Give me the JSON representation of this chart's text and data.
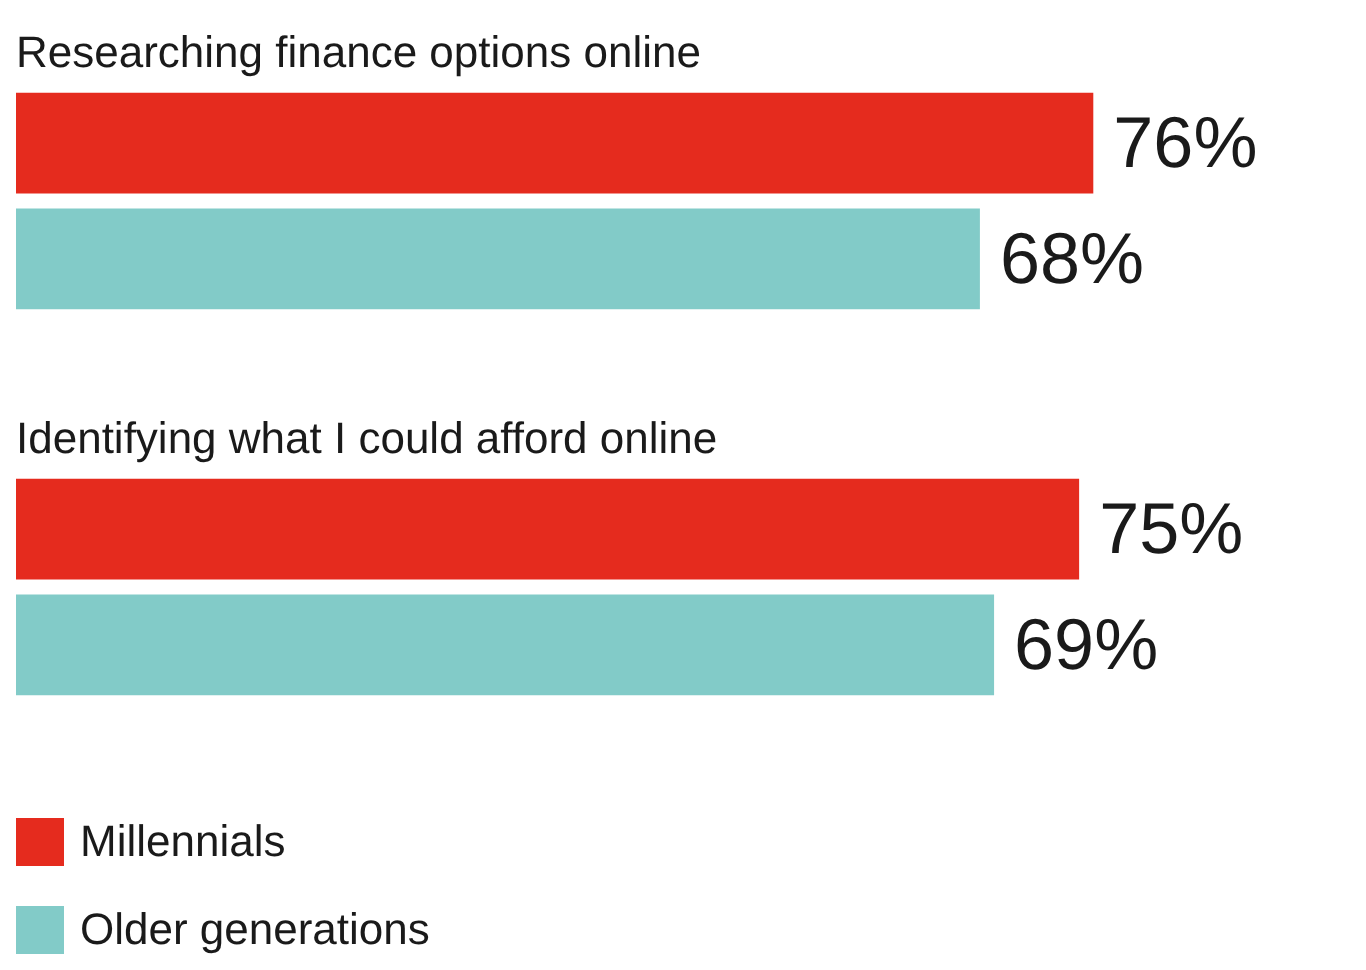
{
  "chart_data": {
    "type": "bar",
    "orientation": "horizontal",
    "categories": [
      "Researching finance options online",
      "Identifying what I could afford online"
    ],
    "series": [
      {
        "name": "Millennials",
        "color": "#e52b1e",
        "values": [
          76,
          75
        ],
        "value_labels": [
          "76%",
          "75%"
        ]
      },
      {
        "name": "Older generations",
        "color": "#82cbc8",
        "values": [
          68,
          69
        ],
        "value_labels": [
          "68%",
          "69%"
        ]
      }
    ],
    "legend": "bottom left"
  }
}
